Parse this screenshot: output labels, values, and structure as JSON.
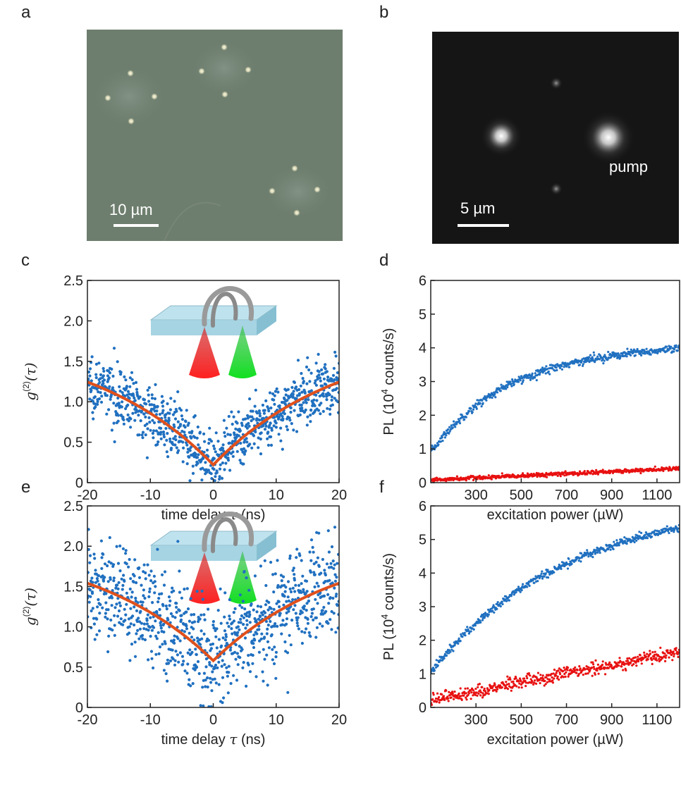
{
  "panels": {
    "a": {
      "letter": "a",
      "scale_label": "10 µm",
      "background": "#6f7f6f"
    },
    "b": {
      "letter": "b",
      "scale_label": "5 µm",
      "annotation": "pump",
      "background": "#141414"
    },
    "c": {
      "letter": "c"
    },
    "d": {
      "letter": "d"
    },
    "e": {
      "letter": "e"
    },
    "f": {
      "letter": "f"
    }
  },
  "colors": {
    "data_blue": "#2070c0",
    "fit_orange": "#e0501c",
    "data_red": "#e81010"
  },
  "chart_data": [
    {
      "id": "c",
      "type": "scatter",
      "xlabel_prefix": "time delay ",
      "xlabel_var": "τ",
      "xlabel_suffix": " (ns)",
      "ylabel_main": "g",
      "ylabel_sup": "(2)",
      "ylabel_arg": "(τ)",
      "xlim": [
        -20,
        20
      ],
      "ylim": [
        0,
        2.5
      ],
      "xticks": [
        "-20",
        "-10",
        "0",
        "10",
        "20"
      ],
      "yticks": [
        "0",
        "0.5",
        "1.0",
        "1.5",
        "2.0",
        "2.5"
      ],
      "series": [
        {
          "kind": "scatter",
          "color": "#2070c0",
          "points": 900,
          "noise": 0.17
        },
        {
          "kind": "fit",
          "color": "#e0501c",
          "g0": 0.22,
          "g_inf": 1.84,
          "tau_ns": 20
        }
      ]
    },
    {
      "id": "d",
      "type": "scatter",
      "xlabel": "excitation power (µW)",
      "ylabel_pre": "PL (10",
      "ylabel_sup": "4",
      "ylabel_post": " counts/s)",
      "xlim": [
        100,
        1200
      ],
      "ylim": [
        0,
        6
      ],
      "xticks": [
        "300",
        "500",
        "700",
        "900",
        "1100"
      ],
      "yticks": [
        "0",
        "1",
        "2",
        "3",
        "4",
        "5",
        "6"
      ],
      "series": [
        {
          "kind": "scatter",
          "color": "#2070c0",
          "x_start": 100,
          "x_end": 1200,
          "y_start": 0.9,
          "y_end": 3.95,
          "curve": "saturating",
          "k": 350,
          "noise": 0.06
        },
        {
          "kind": "scatter",
          "color": "#e81010",
          "x_start": 100,
          "x_end": 1200,
          "y_start": 0.08,
          "y_end": 0.42,
          "curve": "linear",
          "noise": 0.03
        }
      ]
    },
    {
      "id": "e",
      "type": "scatter",
      "xlabel_prefix": "time delay ",
      "xlabel_var": "τ",
      "xlabel_suffix": " (ns)",
      "ylabel_main": "g",
      "ylabel_sup": "(2)",
      "ylabel_arg": "(τ)",
      "xlim": [
        -20,
        20
      ],
      "ylim": [
        0,
        2.5
      ],
      "xticks": [
        "-20",
        "-10",
        "0",
        "10",
        "20"
      ],
      "yticks": [
        "0",
        "0.5",
        "1.0",
        "1.5",
        "2.0",
        "2.5"
      ],
      "series": [
        {
          "kind": "scatter",
          "color": "#2070c0",
          "points": 900,
          "noise": 0.32
        },
        {
          "kind": "fit",
          "color": "#e0501c",
          "g0": 0.58,
          "g_inf": 2.1,
          "tau_ns": 20
        }
      ]
    },
    {
      "id": "f",
      "type": "scatter",
      "xlabel": "excitation power (µW)",
      "ylabel_pre": "PL (10",
      "ylabel_sup": "4",
      "ylabel_post": " counts/s)",
      "xlim": [
        100,
        1200
      ],
      "ylim": [
        0,
        6
      ],
      "xticks": [
        "300",
        "500",
        "700",
        "900",
        "1100"
      ],
      "yticks": [
        "0",
        "1",
        "2",
        "3",
        "4",
        "5",
        "6"
      ],
      "series": [
        {
          "kind": "scatter",
          "color": "#2070c0",
          "x_start": 100,
          "x_end": 1200,
          "y_start": 1.05,
          "y_end": 5.35,
          "curve": "saturating",
          "k": 600,
          "noise": 0.06
        },
        {
          "kind": "scatter",
          "color": "#e81010",
          "x_start": 100,
          "x_end": 1200,
          "y_start": 0.22,
          "y_end": 1.65,
          "curve": "linear",
          "noise": 0.1
        }
      ]
    }
  ]
}
